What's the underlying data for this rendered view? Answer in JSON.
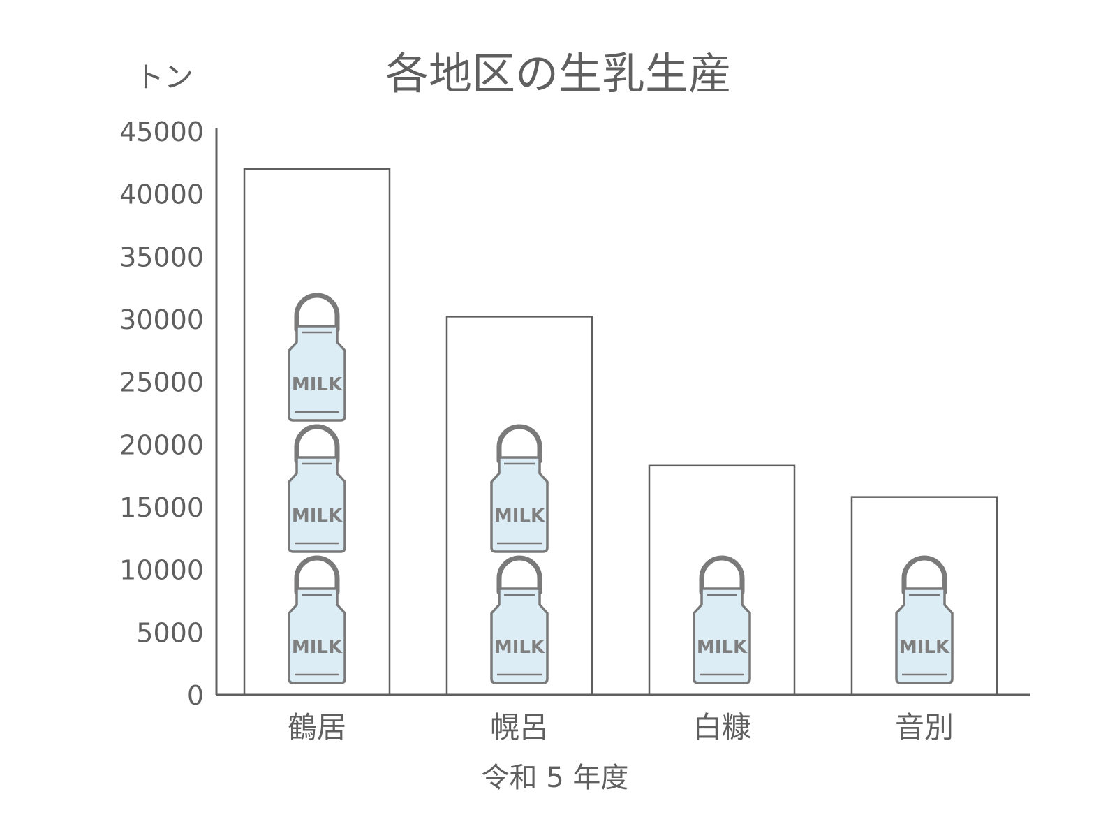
{
  "chart_data": {
    "type": "bar",
    "title": "各地区の生乳生産",
    "ylabel": "トン",
    "xlabel": "令和 5 年度",
    "categories": [
      "鶴居",
      "幌呂",
      "白糠",
      "音別"
    ],
    "values": [
      42000,
      30200,
      18300,
      15800
    ],
    "ylim": [
      0,
      45000
    ],
    "yticks": [
      0,
      5000,
      10000,
      15000,
      20000,
      25000,
      30000,
      35000,
      40000,
      45000
    ],
    "icon_counts": [
      3,
      2,
      1,
      1
    ],
    "icon": {
      "name": "milk-can-icon",
      "label": "MILK"
    },
    "grid": false,
    "colors": {
      "axis": "#5f5f5f",
      "bar_fill": "#ffffff",
      "icon_fill": "#dcedf6",
      "icon_stroke": "#7a7a7a"
    }
  }
}
